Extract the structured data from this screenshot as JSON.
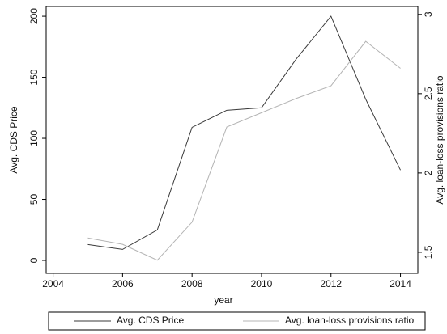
{
  "chart_data": {
    "type": "line",
    "x_label": "year",
    "y_label": "Avg. CDS Price",
    "y2_label": "Avg. loan-loss provisions ratio",
    "x": [
      2005,
      2006,
      2007,
      2008,
      2009,
      2010,
      2011,
      2012,
      2013,
      2014
    ],
    "xlim": [
      2003.8,
      2014.5
    ],
    "xticks": [
      2004,
      2006,
      2008,
      2010,
      2012,
      2014
    ],
    "ylim": [
      -10.6,
      208
    ],
    "yticks": [
      0,
      50,
      100,
      150,
      200
    ],
    "y2lim": [
      1.367,
      3.05
    ],
    "y2ticks": [
      1.5,
      2,
      2.5,
      3
    ],
    "grid": false,
    "series": [
      {
        "name": "Avg. CDS Price",
        "color": "#3a3a3a",
        "values": [
          13,
          9,
          25,
          109,
          123,
          125,
          165,
          200,
          132,
          74
        ]
      },
      {
        "name": "Avg. loan-loss provisions ratio",
        "color": "#b4b4b4",
        "axis": "y2",
        "values": [
          1.59,
          1.55,
          1.45,
          1.69,
          2.29,
          2.38,
          2.47,
          2.55,
          2.83,
          2.66
        ]
      }
    ]
  }
}
